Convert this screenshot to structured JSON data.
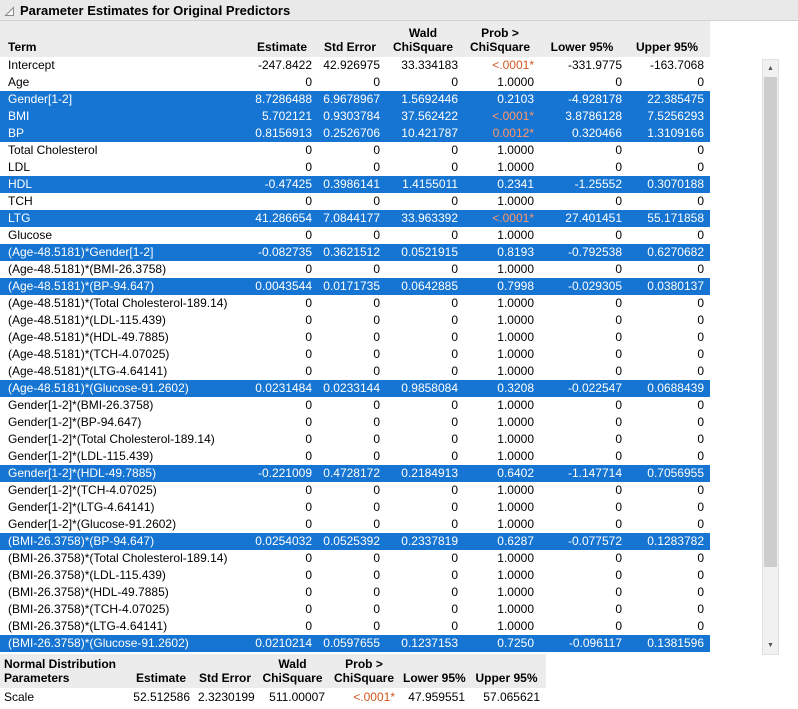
{
  "title": "Parameter Estimates for Original Predictors",
  "colors": {
    "selection_blue": "#1675d2",
    "significant_orange": "#d2571e",
    "header_gray": "#ececec"
  },
  "icons": {
    "disclosure": "open-disclosure-triangle",
    "up_arrow": "▲",
    "down_arrow": "▼"
  },
  "main_table": {
    "columns": [
      {
        "key": "term",
        "line1": "",
        "line2": "Term"
      },
      {
        "key": "estimate",
        "line1": "",
        "line2": "Estimate"
      },
      {
        "key": "std-error",
        "line1": "",
        "line2": "Std Error"
      },
      {
        "key": "wald-chisquare",
        "line1": "Wald",
        "line2": "ChiSquare"
      },
      {
        "key": "prob-chisquare",
        "line1": "Prob >",
        "line2": "ChiSquare"
      },
      {
        "key": "lower-95",
        "line1": "",
        "line2": "Lower 95%"
      },
      {
        "key": "upper-95",
        "line1": "",
        "line2": "Upper 95%"
      }
    ],
    "rows": [
      {
        "term": "Intercept",
        "values": [
          "-247.8422",
          "42.926975",
          "33.334183",
          "<.0001*",
          "-331.9775",
          "-163.7068"
        ],
        "selected": false
      },
      {
        "term": "Age",
        "values": [
          "0",
          "0",
          "0",
          "1.0000",
          "0",
          "0"
        ],
        "selected": false
      },
      {
        "term": "Gender[1-2]",
        "values": [
          "8.7286488",
          "6.9678967",
          "1.5692446",
          "0.2103",
          "-4.928178",
          "22.385475"
        ],
        "selected": true
      },
      {
        "term": "BMI",
        "values": [
          "5.702121",
          "0.9303784",
          "37.562422",
          "<.0001*",
          "3.8786128",
          "7.5256293"
        ],
        "selected": true
      },
      {
        "term": "BP",
        "values": [
          "0.8156913",
          "0.2526706",
          "10.421787",
          "0.0012*",
          "0.320466",
          "1.3109166"
        ],
        "selected": true
      },
      {
        "term": "Total Cholesterol",
        "values": [
          "0",
          "0",
          "0",
          "1.0000",
          "0",
          "0"
        ],
        "selected": false
      },
      {
        "term": "LDL",
        "values": [
          "0",
          "0",
          "0",
          "1.0000",
          "0",
          "0"
        ],
        "selected": false
      },
      {
        "term": "HDL",
        "values": [
          "-0.47425",
          "0.3986141",
          "1.4155011",
          "0.2341",
          "-1.25552",
          "0.3070188"
        ],
        "selected": true
      },
      {
        "term": "TCH",
        "values": [
          "0",
          "0",
          "0",
          "1.0000",
          "0",
          "0"
        ],
        "selected": false
      },
      {
        "term": "LTG",
        "values": [
          "41.286654",
          "7.0844177",
          "33.963392",
          "<.0001*",
          "27.401451",
          "55.171858"
        ],
        "selected": true
      },
      {
        "term": "Glucose",
        "values": [
          "0",
          "0",
          "0",
          "1.0000",
          "0",
          "0"
        ],
        "selected": false
      },
      {
        "term": "(Age-48.5181)*Gender[1-2]",
        "values": [
          "-0.082735",
          "0.3621512",
          "0.0521915",
          "0.8193",
          "-0.792538",
          "0.6270682"
        ],
        "selected": true
      },
      {
        "term": "(Age-48.5181)*(BMI-26.3758)",
        "values": [
          "0",
          "0",
          "0",
          "1.0000",
          "0",
          "0"
        ],
        "selected": false
      },
      {
        "term": "(Age-48.5181)*(BP-94.647)",
        "values": [
          "0.0043544",
          "0.0171735",
          "0.0642885",
          "0.7998",
          "-0.029305",
          "0.0380137"
        ],
        "selected": true
      },
      {
        "term": "(Age-48.5181)*(Total Cholesterol-189.14)",
        "values": [
          "0",
          "0",
          "0",
          "1.0000",
          "0",
          "0"
        ],
        "selected": false
      },
      {
        "term": "(Age-48.5181)*(LDL-115.439)",
        "values": [
          "0",
          "0",
          "0",
          "1.0000",
          "0",
          "0"
        ],
        "selected": false
      },
      {
        "term": "(Age-48.5181)*(HDL-49.7885)",
        "values": [
          "0",
          "0",
          "0",
          "1.0000",
          "0",
          "0"
        ],
        "selected": false
      },
      {
        "term": "(Age-48.5181)*(TCH-4.07025)",
        "values": [
          "0",
          "0",
          "0",
          "1.0000",
          "0",
          "0"
        ],
        "selected": false
      },
      {
        "term": "(Age-48.5181)*(LTG-4.64141)",
        "values": [
          "0",
          "0",
          "0",
          "1.0000",
          "0",
          "0"
        ],
        "selected": false
      },
      {
        "term": "(Age-48.5181)*(Glucose-91.2602)",
        "values": [
          "0.0231484",
          "0.0233144",
          "0.9858084",
          "0.3208",
          "-0.022547",
          "0.0688439"
        ],
        "selected": true
      },
      {
        "term": "Gender[1-2]*(BMI-26.3758)",
        "values": [
          "0",
          "0",
          "0",
          "1.0000",
          "0",
          "0"
        ],
        "selected": false
      },
      {
        "term": "Gender[1-2]*(BP-94.647)",
        "values": [
          "0",
          "0",
          "0",
          "1.0000",
          "0",
          "0"
        ],
        "selected": false
      },
      {
        "term": "Gender[1-2]*(Total Cholesterol-189.14)",
        "values": [
          "0",
          "0",
          "0",
          "1.0000",
          "0",
          "0"
        ],
        "selected": false
      },
      {
        "term": "Gender[1-2]*(LDL-115.439)",
        "values": [
          "0",
          "0",
          "0",
          "1.0000",
          "0",
          "0"
        ],
        "selected": false
      },
      {
        "term": "Gender[1-2]*(HDL-49.7885)",
        "values": [
          "-0.221009",
          "0.4728172",
          "0.2184913",
          "0.6402",
          "-1.147714",
          "0.7056955"
        ],
        "selected": true
      },
      {
        "term": "Gender[1-2]*(TCH-4.07025)",
        "values": [
          "0",
          "0",
          "0",
          "1.0000",
          "0",
          "0"
        ],
        "selected": false
      },
      {
        "term": "Gender[1-2]*(LTG-4.64141)",
        "values": [
          "0",
          "0",
          "0",
          "1.0000",
          "0",
          "0"
        ],
        "selected": false
      },
      {
        "term": "Gender[1-2]*(Glucose-91.2602)",
        "values": [
          "0",
          "0",
          "0",
          "1.0000",
          "0",
          "0"
        ],
        "selected": false
      },
      {
        "term": "(BMI-26.3758)*(BP-94.647)",
        "values": [
          "0.0254032",
          "0.0525392",
          "0.2337819",
          "0.6287",
          "-0.077572",
          "0.1283782"
        ],
        "selected": true
      },
      {
        "term": "(BMI-26.3758)*(Total Cholesterol-189.14)",
        "values": [
          "0",
          "0",
          "0",
          "1.0000",
          "0",
          "0"
        ],
        "selected": false
      },
      {
        "term": "(BMI-26.3758)*(LDL-115.439)",
        "values": [
          "0",
          "0",
          "0",
          "1.0000",
          "0",
          "0"
        ],
        "selected": false
      },
      {
        "term": "(BMI-26.3758)*(HDL-49.7885)",
        "values": [
          "0",
          "0",
          "0",
          "1.0000",
          "0",
          "0"
        ],
        "selected": false
      },
      {
        "term": "(BMI-26.3758)*(TCH-4.07025)",
        "values": [
          "0",
          "0",
          "0",
          "1.0000",
          "0",
          "0"
        ],
        "selected": false
      },
      {
        "term": "(BMI-26.3758)*(LTG-4.64141)",
        "values": [
          "0",
          "0",
          "0",
          "1.0000",
          "0",
          "0"
        ],
        "selected": false
      },
      {
        "term": "(BMI-26.3758)*(Glucose-91.2602)",
        "values": [
          "0.0210214",
          "0.0597655",
          "0.1237153",
          "0.7250",
          "-0.096117",
          "0.1381596"
        ],
        "selected": true
      }
    ]
  },
  "bottom_table": {
    "columns": [
      {
        "key": "parameters",
        "line1": "Normal Distribution",
        "line2": "Parameters"
      },
      {
        "key": "estimate",
        "line1": "",
        "line2": "Estimate"
      },
      {
        "key": "std-error",
        "line1": "",
        "line2": "Std Error"
      },
      {
        "key": "wald-chisquare",
        "line1": "Wald",
        "line2": "ChiSquare"
      },
      {
        "key": "prob-chisquare",
        "line1": "Prob >",
        "line2": "ChiSquare"
      },
      {
        "key": "lower-95",
        "line1": "",
        "line2": "Lower 95%"
      },
      {
        "key": "upper-95",
        "line1": "",
        "line2": "Upper 95%"
      }
    ],
    "rows": [
      {
        "term": "Scale",
        "values": [
          "52.512586",
          "2.3230199",
          "511.00007",
          "<.0001*",
          "47.959551",
          "57.065621"
        ],
        "selected": false
      }
    ]
  }
}
